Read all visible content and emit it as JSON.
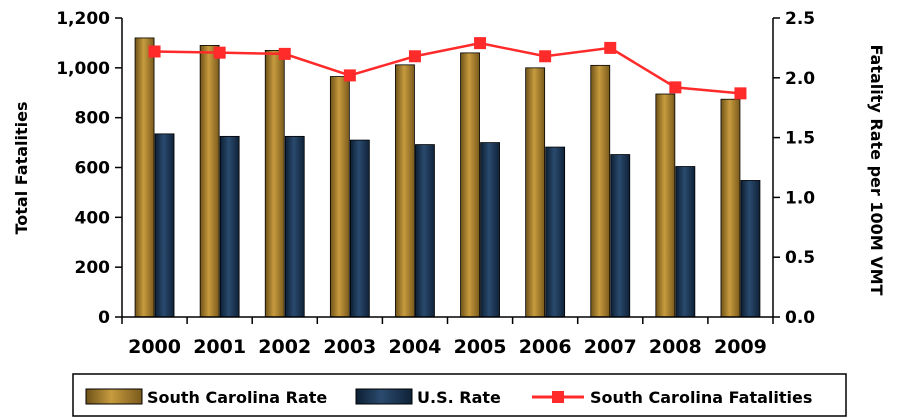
{
  "chart_data": {
    "type": "bar",
    "categories": [
      "2000",
      "2001",
      "2002",
      "2003",
      "2004",
      "2005",
      "2006",
      "2007",
      "2008",
      "2009"
    ],
    "series": [
      {
        "name": "South Carolina Rate",
        "kind": "bar",
        "axis": "left",
        "values": [
          1120,
          1090,
          1070,
          965,
          1012,
          1060,
          1000,
          1010,
          895,
          874
        ],
        "color": "#a07a2a"
      },
      {
        "name": "U.S. Rate",
        "kind": "bar",
        "axis": "left",
        "values": [
          735,
          725,
          725,
          710,
          692,
          700,
          682,
          652,
          604,
          548
        ],
        "color": "#1b3553"
      },
      {
        "name": "South Carolina Fatalities",
        "kind": "line",
        "axis": "right",
        "values": [
          2.22,
          2.21,
          2.2,
          2.02,
          2.18,
          2.29,
          2.18,
          2.25,
          1.92,
          1.87
        ],
        "color": "#ff2a2a"
      }
    ],
    "ylabel": "Total Fatalities",
    "y2label": "Fatality Rate per 100M VMT",
    "ylim": [
      0,
      1200
    ],
    "y2lim": [
      0,
      2.5
    ],
    "yticks": [
      "0",
      "200",
      "400",
      "600",
      "800",
      "1,000",
      "1,200"
    ],
    "y2ticks": [
      "0.0",
      "0.5",
      "1.0",
      "1.5",
      "2.0",
      "2.5"
    ],
    "grid": false,
    "legend_position": "bottom"
  }
}
